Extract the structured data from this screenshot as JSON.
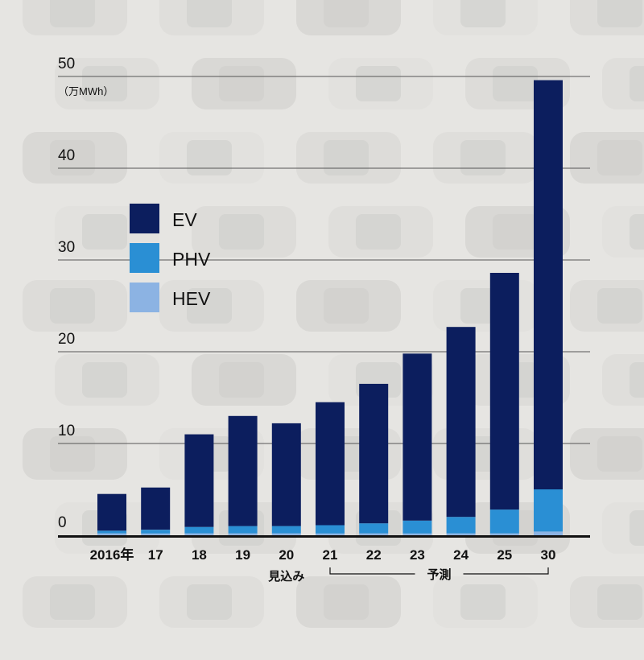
{
  "chart_data": {
    "type": "bar",
    "stacked": true,
    "unit_label": "（万MWh）",
    "categories": [
      "2016年",
      "17",
      "18",
      "19",
      "20",
      "21",
      "22",
      "23",
      "24",
      "25",
      "30"
    ],
    "series": [
      {
        "name": "HEV",
        "color": "#8cb3e3",
        "values": [
          0.2,
          0.2,
          0.2,
          0.2,
          0.2,
          0.2,
          0.2,
          0.2,
          0.2,
          0.2,
          0.4
        ]
      },
      {
        "name": "PHV",
        "color": "#2a8fd4",
        "values": [
          0.3,
          0.4,
          0.7,
          0.8,
          0.8,
          0.9,
          1.1,
          1.4,
          1.8,
          2.6,
          4.6
        ]
      },
      {
        "name": "EV",
        "color": "#0c1e5e",
        "values": [
          4.0,
          4.6,
          10.1,
          12.0,
          11.2,
          13.4,
          15.2,
          18.2,
          20.7,
          25.8,
          44.6
        ]
      }
    ],
    "legend_order": [
      "EV",
      "PHV",
      "HEV"
    ],
    "y_ticks": [
      0,
      10,
      20,
      30,
      40,
      50
    ],
    "ylim": [
      0,
      50
    ],
    "annotations": {
      "mikomi": "見込み",
      "yosoku": "予測"
    },
    "title": "",
    "xlabel": "",
    "ylabel": "万MWh"
  }
}
